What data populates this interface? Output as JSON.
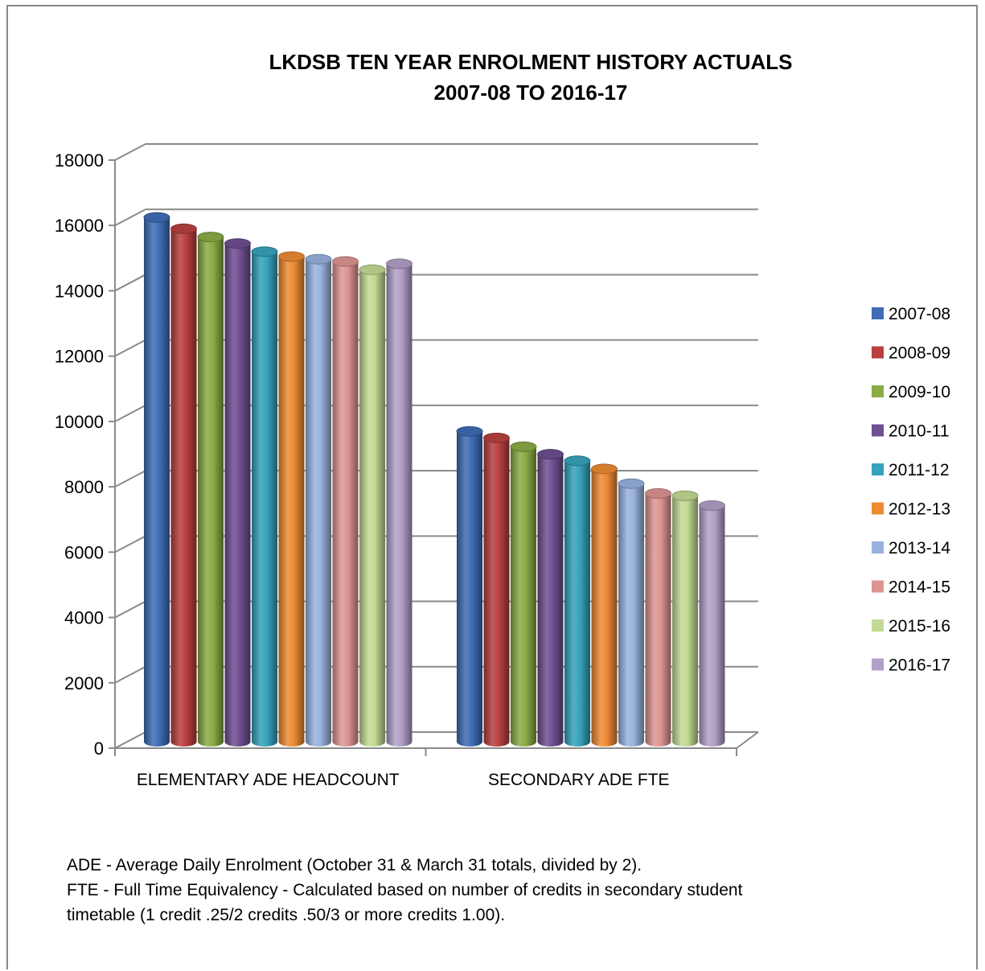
{
  "chart_data": {
    "type": "bar",
    "title_lines": [
      "LKDSB TEN YEAR ENROLMENT HISTORY ACTUALS",
      "2007-08 TO 2016-17"
    ],
    "categories": [
      "ELEMENTARY ADE HEADCOUNT",
      "SECONDARY ADE FTE"
    ],
    "series": [
      {
        "name": "2007-08",
        "values": [
          16000,
          9450
        ],
        "color": "#3E6DB5"
      },
      {
        "name": "2008-09",
        "values": [
          15650,
          9250
        ],
        "color": "#B8403E"
      },
      {
        "name": "2009-10",
        "values": [
          15400,
          8980
        ],
        "color": "#8AAB45"
      },
      {
        "name": "2010-11",
        "values": [
          15200,
          8750
        ],
        "color": "#6E4F92"
      },
      {
        "name": "2011-12",
        "values": [
          14950,
          8550
        ],
        "color": "#36A2BC"
      },
      {
        "name": "2012-13",
        "values": [
          14800,
          8300
        ],
        "color": "#ED8A34"
      },
      {
        "name": "2013-14",
        "values": [
          14720,
          7850
        ],
        "color": "#98B2DE"
      },
      {
        "name": "2014-15",
        "values": [
          14650,
          7550
        ],
        "color": "#DD9593"
      },
      {
        "name": "2015-16",
        "values": [
          14400,
          7480
        ],
        "color": "#C2DA94"
      },
      {
        "name": "2016-17",
        "values": [
          14580,
          7180
        ],
        "color": "#B1A0C7"
      }
    ],
    "yticks": [
      0,
      2000,
      4000,
      6000,
      8000,
      10000,
      12000,
      14000,
      16000,
      18000
    ],
    "ylim": [
      0,
      18000
    ],
    "grid": true,
    "legend": "right"
  },
  "notes": [
    "ADE - Average Daily Enrolment (October 31 & March 31 totals, divided by 2).",
    "FTE - Full Time Equivalency - Calculated based on number of credits in secondary student",
    "timetable  (1 credit  .25/2 credits .50/3 or more credits 1.00)."
  ]
}
